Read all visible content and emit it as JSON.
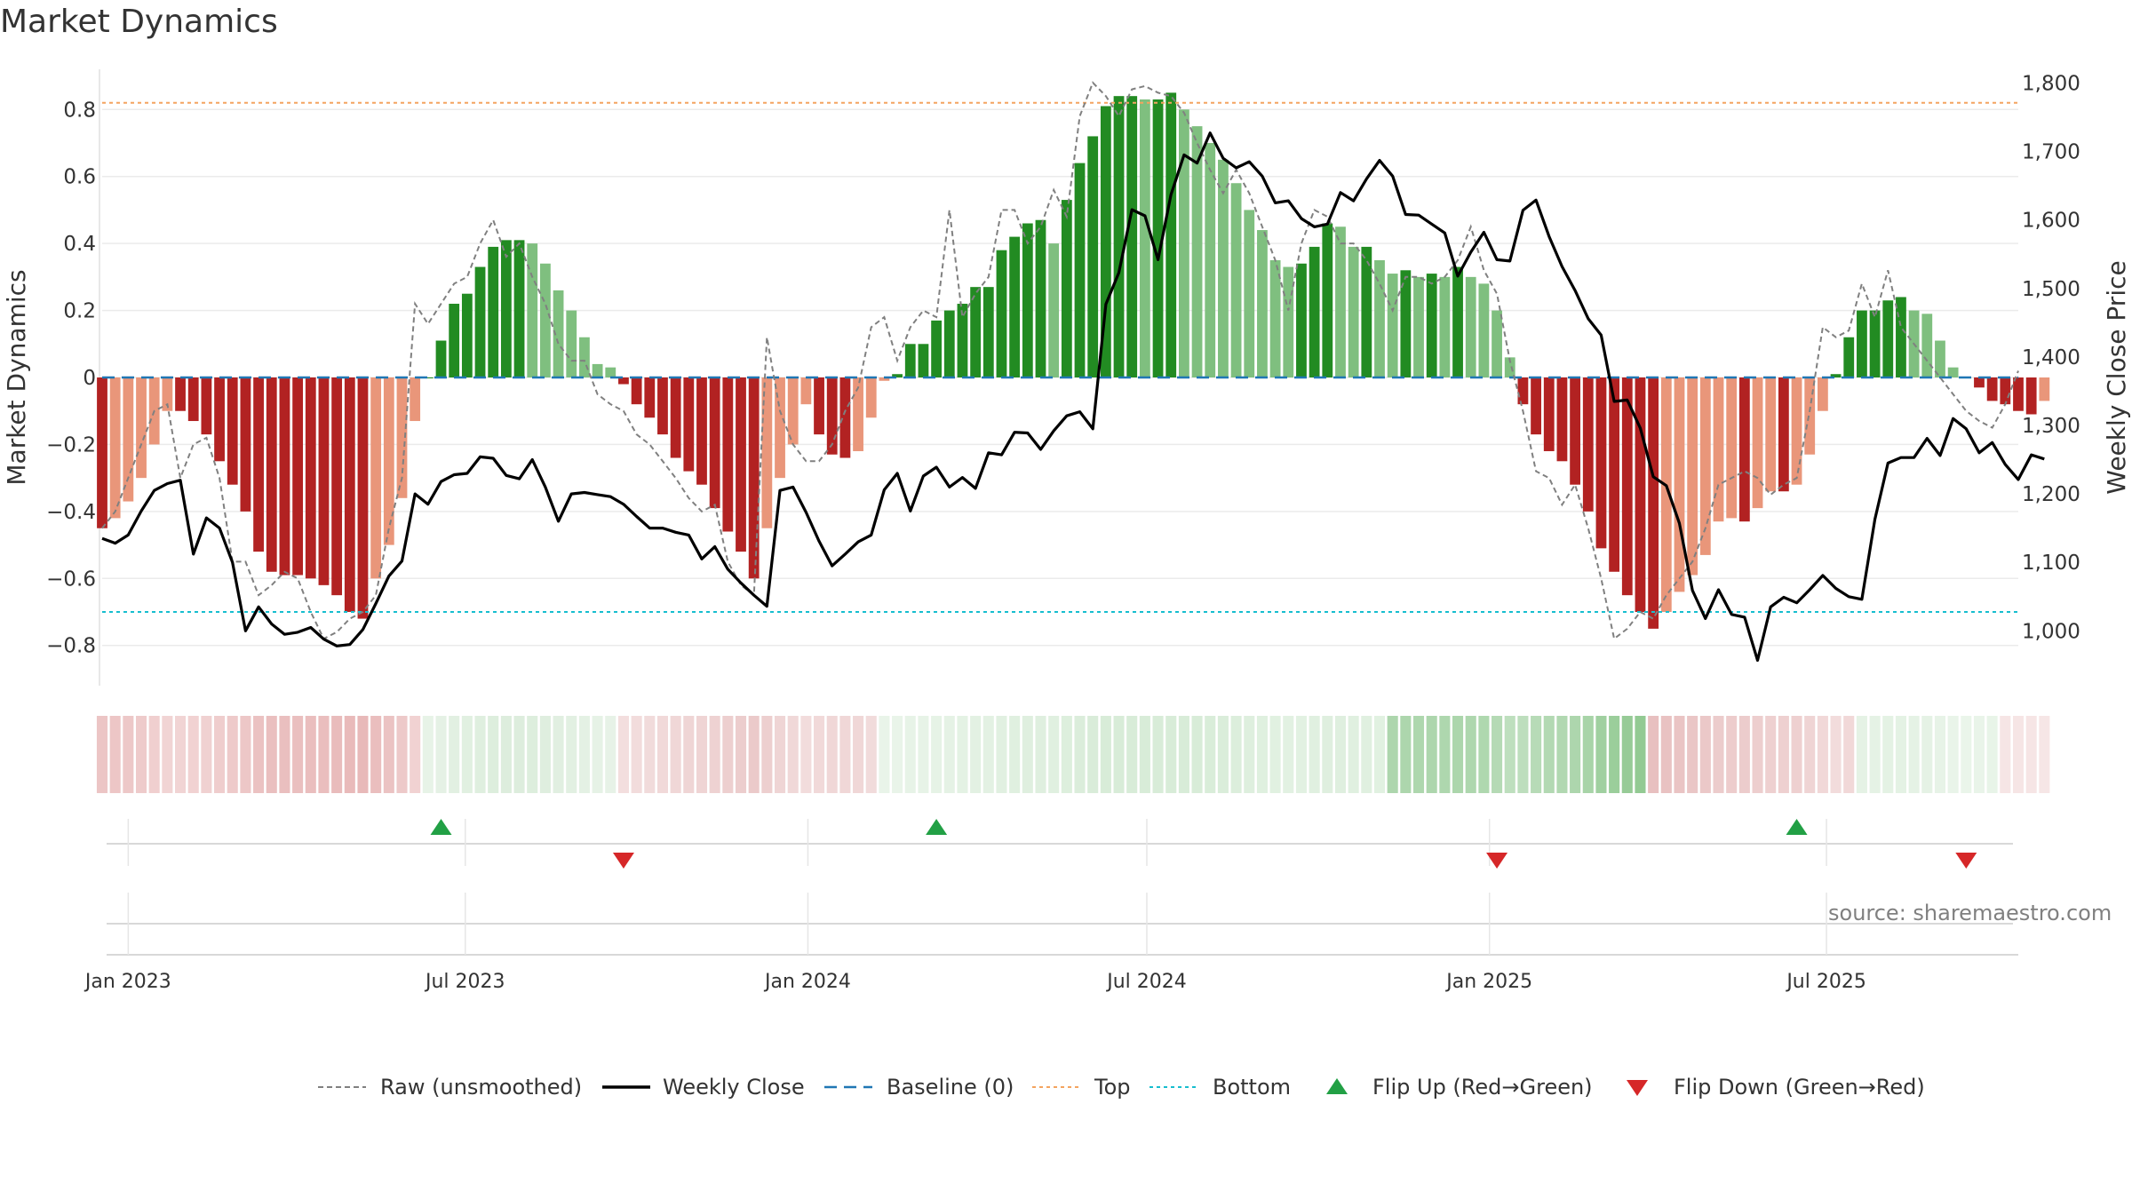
{
  "title": "Market Dynamics",
  "source": "source: sharemaestro.com",
  "legend": {
    "raw": "Raw (unsmoothed)",
    "close": "Weekly Close",
    "baseline": "Baseline (0)",
    "top": "Top",
    "bottom": "Bottom",
    "flip_up": "Flip Up (Red→Green)",
    "flip_down": "Flip Down (Green→Red)"
  },
  "colors": {
    "green_dark": "#228B22",
    "green_light": "#7fbf7f",
    "red_dark": "#b22222",
    "red_light": "#e9967a",
    "top_line": "#f4a460",
    "bottom_line": "#17becf",
    "baseline": "#1f77b4",
    "raw": "#808080",
    "close": "#000000",
    "flip_up": "#22a045",
    "flip_down": "#d62728"
  },
  "chart_data": {
    "type": "bar",
    "ylabel_left": "Market Dynamics",
    "ylabel_right": "Weekly Close Price",
    "y_ticks_left": [
      "0.8",
      "0.6",
      "0.4",
      "0.2",
      "0",
      "−0.2",
      "−0.4",
      "−0.6",
      "−0.8"
    ],
    "y_tick_values_left": [
      0.8,
      0.6,
      0.4,
      0.2,
      0,
      -0.2,
      -0.4,
      -0.6,
      -0.8
    ],
    "y_ticks_right": [
      "1,800",
      "1,700",
      "1,600",
      "1,500",
      "1,400",
      "1,300",
      "1,200",
      "1,100",
      "1,000"
    ],
    "y_tick_values_right": [
      1800,
      1700,
      1600,
      1500,
      1400,
      1300,
      1200,
      1100,
      1000
    ],
    "ylim_left": [
      -0.92,
      0.92
    ],
    "ylim_right": [
      920,
      1820
    ],
    "x_ticks": [
      "Jan 2023",
      "Jul 2023",
      "Jan 2024",
      "Jul 2024",
      "Jan 2025",
      "Jul 2025"
    ],
    "x_tick_dates": [
      "2023-01-01",
      "2023-07-01",
      "2024-01-01",
      "2024-07-01",
      "2025-01-01",
      "2025-07-01"
    ],
    "x_range": [
      "2022-12-18",
      "2025-10-12"
    ],
    "top_level": 0.82,
    "bottom_level": -0.7,
    "baseline": 0,
    "grid": true,
    "legend_position": "bottom",
    "weeks": {
      "start": "2022-12-18",
      "step_days": 7,
      "momentum": [
        -0.45,
        -0.42,
        -0.37,
        -0.3,
        -0.2,
        -0.1,
        -0.1,
        -0.13,
        -0.17,
        -0.25,
        -0.32,
        -0.4,
        -0.52,
        -0.58,
        -0.59,
        -0.59,
        -0.6,
        -0.62,
        -0.65,
        -0.7,
        -0.72,
        -0.6,
        -0.5,
        -0.36,
        -0.13,
        0.0,
        0.11,
        0.22,
        0.25,
        0.33,
        0.39,
        0.41,
        0.41,
        0.4,
        0.34,
        0.26,
        0.2,
        0.12,
        0.04,
        0.03,
        -0.02,
        -0.08,
        -0.12,
        -0.17,
        -0.24,
        -0.28,
        -0.32,
        -0.39,
        -0.46,
        -0.52,
        -0.6,
        -0.45,
        -0.3,
        -0.2,
        -0.08,
        -0.17,
        -0.23,
        -0.24,
        -0.22,
        -0.12,
        -0.01,
        0.01,
        0.1,
        0.1,
        0.17,
        0.2,
        0.22,
        0.27,
        0.27,
        0.38,
        0.42,
        0.46,
        0.47,
        0.4,
        0.53,
        0.64,
        0.72,
        0.81,
        0.84,
        0.84,
        0.83,
        0.83,
        0.85,
        0.8,
        0.75,
        0.7,
        0.65,
        0.58,
        0.5,
        0.44,
        0.35,
        0.33,
        0.34,
        0.39,
        0.46,
        0.45,
        0.39,
        0.39,
        0.35,
        0.31,
        0.32,
        0.3,
        0.31,
        0.3,
        0.33,
        0.3,
        0.28,
        0.2,
        0.06,
        -0.08,
        -0.17,
        -0.22,
        -0.25,
        -0.32,
        -0.4,
        -0.51,
        -0.58,
        -0.65,
        -0.7,
        -0.75,
        -0.7,
        -0.64,
        -0.59,
        -0.53,
        -0.43,
        -0.42,
        -0.43,
        -0.39,
        -0.34,
        -0.34,
        -0.32,
        -0.23,
        -0.1,
        0.01,
        0.12,
        0.2,
        0.2,
        0.23,
        0.24,
        0.2,
        0.19,
        0.11,
        0.03,
        0.0,
        -0.03,
        -0.07,
        -0.08,
        -0.1,
        -0.11,
        -0.07
      ],
      "raw": [
        -0.45,
        -0.4,
        -0.3,
        -0.2,
        -0.1,
        -0.08,
        -0.3,
        -0.2,
        -0.18,
        -0.3,
        -0.55,
        -0.55,
        -0.65,
        -0.62,
        -0.58,
        -0.6,
        -0.7,
        -0.78,
        -0.76,
        -0.72,
        -0.7,
        -0.65,
        -0.45,
        -0.3,
        0.22,
        0.16,
        0.22,
        0.28,
        0.3,
        0.4,
        0.47,
        0.36,
        0.4,
        0.3,
        0.22,
        0.1,
        0.05,
        0.05,
        -0.05,
        -0.08,
        -0.1,
        -0.17,
        -0.2,
        -0.25,
        -0.3,
        -0.36,
        -0.4,
        -0.38,
        -0.55,
        -0.62,
        -0.65,
        0.12,
        -0.1,
        -0.2,
        -0.25,
        -0.25,
        -0.2,
        -0.1,
        -0.03,
        0.15,
        0.18,
        0.05,
        0.15,
        0.2,
        0.18,
        0.5,
        0.18,
        0.25,
        0.3,
        0.5,
        0.5,
        0.4,
        0.45,
        0.56,
        0.48,
        0.78,
        0.88,
        0.84,
        0.78,
        0.86,
        0.87,
        0.85,
        0.84,
        0.79,
        0.7,
        0.62,
        0.55,
        0.62,
        0.55,
        0.45,
        0.35,
        0.2,
        0.4,
        0.5,
        0.48,
        0.4,
        0.4,
        0.35,
        0.28,
        0.2,
        0.3,
        0.3,
        0.28,
        0.3,
        0.35,
        0.45,
        0.32,
        0.25,
        0.05,
        -0.1,
        -0.28,
        -0.3,
        -0.38,
        -0.32,
        -0.45,
        -0.6,
        -0.78,
        -0.75,
        -0.7,
        -0.72,
        -0.65,
        -0.6,
        -0.55,
        -0.45,
        -0.32,
        -0.3,
        -0.28,
        -0.3,
        -0.35,
        -0.32,
        -0.3,
        -0.1,
        0.15,
        0.12,
        0.14,
        0.28,
        0.18,
        0.32,
        0.15,
        0.1,
        0.05,
        0.0,
        -0.05,
        -0.1,
        -0.13,
        -0.15,
        -0.08,
        0.02
      ],
      "close": [
        1135,
        1128,
        1140,
        1175,
        1205,
        1215,
        1220,
        1112,
        1165,
        1150,
        1100,
        1000,
        1035,
        1010,
        995,
        998,
        1005,
        988,
        978,
        980,
        1002,
        1040,
        1080,
        1102,
        1200,
        1185,
        1218,
        1228,
        1230,
        1254,
        1252,
        1227,
        1222,
        1250,
        1210,
        1160,
        1200,
        1202,
        1199,
        1196,
        1185,
        1167,
        1150,
        1150,
        1144,
        1140,
        1105,
        1123,
        1090,
        1070,
        1052,
        1036,
        1205,
        1210,
        1173,
        1131,
        1095,
        1112,
        1130,
        1140,
        1206,
        1230,
        1175,
        1226,
        1239,
        1210,
        1224,
        1208,
        1260,
        1257,
        1290,
        1289,
        1265,
        1292,
        1314,
        1320,
        1295,
        1477,
        1523,
        1615,
        1606,
        1542,
        1637,
        1695,
        1683,
        1727,
        1690,
        1676,
        1685,
        1664,
        1625,
        1628,
        1602,
        1590,
        1594,
        1640,
        1628,
        1660,
        1687,
        1664,
        1608,
        1607,
        1594,
        1581,
        1518,
        1553,
        1582,
        1542,
        1540,
        1614,
        1629,
        1576,
        1532,
        1497,
        1456,
        1432,
        1335,
        1337,
        1296,
        1225,
        1212,
        1157,
        1059,
        1018,
        1060,
        1024,
        1020,
        957,
        1035,
        1049,
        1041,
        1060,
        1081,
        1062,
        1050,
        1046,
        1163,
        1245,
        1253,
        1253,
        1281,
        1256,
        1310,
        1295,
        1260,
        1275,
        1243,
        1221,
        1257,
        1251,
        1262,
        1260,
        1268,
        1275,
        1299
      ]
    },
    "cloud_band": {
      "segment_starts": [
        0,
        25,
        40,
        60,
        99,
        119,
        135,
        146
      ],
      "colors": [
        "#e8b8b8",
        "#d4e9d4",
        "#e9c5c5",
        "#d8ecd8",
        "#90c890",
        "#e8c0c0",
        "#d8ecd8",
        "#f0d4d4"
      ]
    },
    "flips": [
      {
        "type": "up",
        "date": "2023-06-18"
      },
      {
        "type": "down",
        "date": "2023-09-24"
      },
      {
        "type": "up",
        "date": "2024-03-10"
      },
      {
        "type": "down",
        "date": "2025-01-05"
      },
      {
        "type": "up",
        "date": "2025-06-15"
      },
      {
        "type": "down",
        "date": "2025-09-14"
      }
    ]
  }
}
